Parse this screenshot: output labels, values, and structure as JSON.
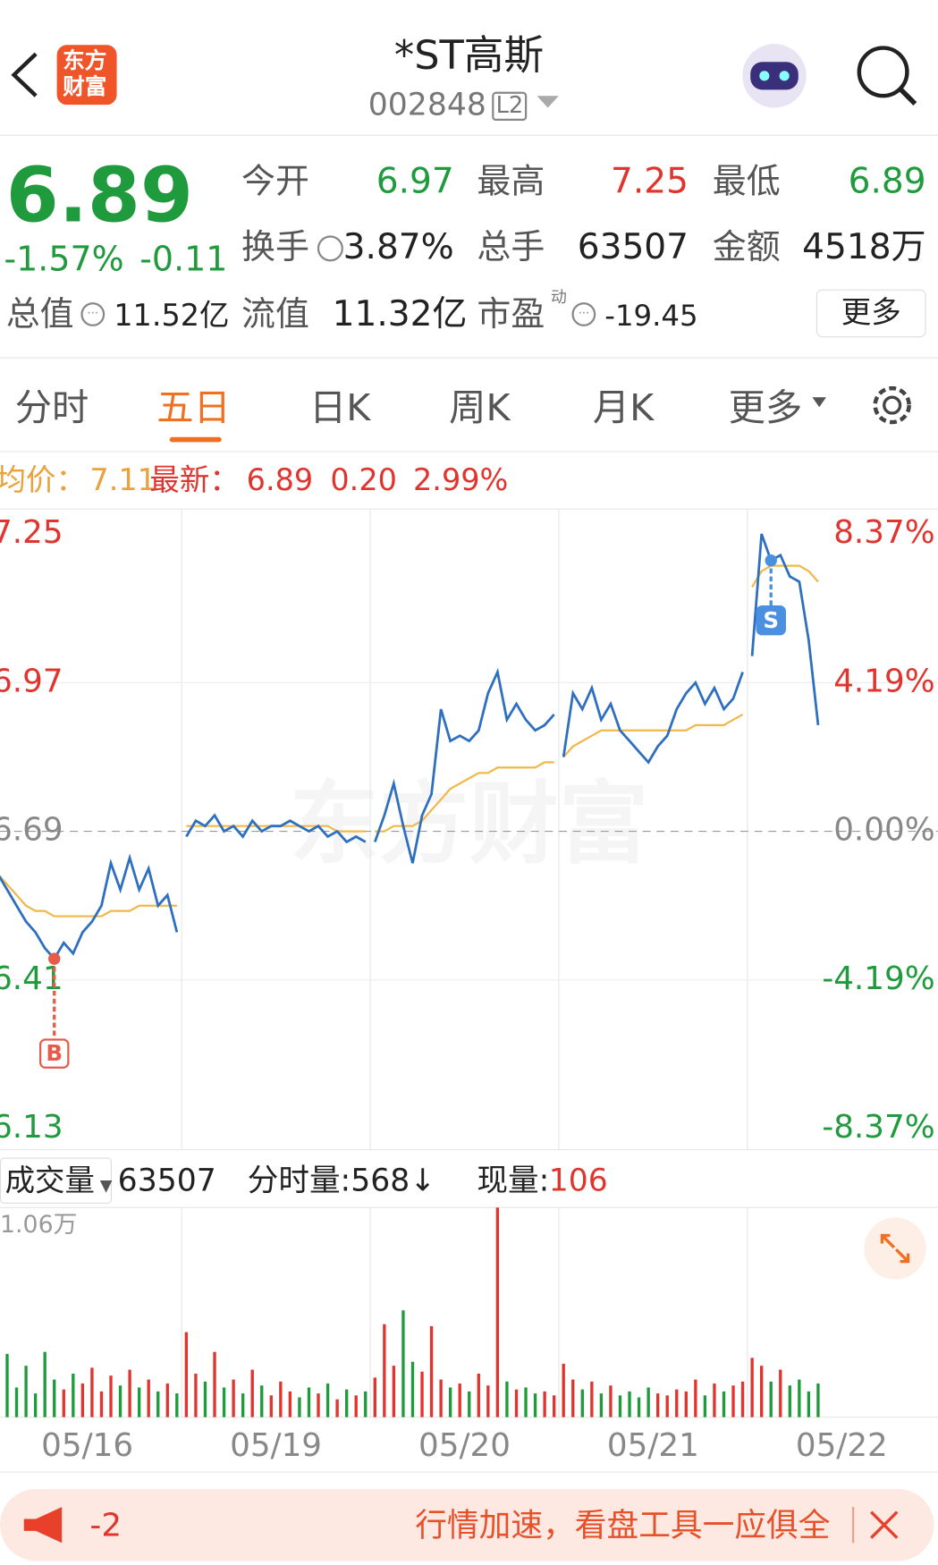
{
  "header": {
    "title": "*ST高斯",
    "code": "002848",
    "badge": "L2",
    "logo": [
      "东方",
      "财富"
    ]
  },
  "quote": {
    "price": "6.89",
    "change_pct": "-1.57%",
    "change": "-0.11",
    "stats": [
      {
        "label": "今开",
        "value": "6.97"
      },
      {
        "label": "最高",
        "value": "7.25"
      },
      {
        "label": "最低",
        "value": "6.89"
      },
      {
        "label": "换手",
        "value": "3.87%"
      },
      {
        "label": "总手",
        "value": "63507"
      },
      {
        "label": "金额",
        "value": "4518万"
      }
    ],
    "total_value": {
      "label": "总值",
      "value": "11.52亿"
    },
    "float_value": {
      "label": "流值",
      "value": "11.32亿"
    },
    "pe": {
      "label": "市盈",
      "sup": "动",
      "value": "-19.45"
    },
    "more": "更多"
  },
  "tabs": [
    "分时",
    "五日",
    "日K",
    "周K",
    "月K",
    "更多"
  ],
  "info": {
    "avg_label": "均价：",
    "avg": "7.11",
    "last_label": "最新：",
    "last": "6.89",
    "diff": "0.20",
    "pct": "2.99%"
  },
  "watermark": "东方财富",
  "price_chart": {
    "ylim": [
      6.13,
      7.25
    ],
    "yticks": [
      7.25,
      6.97,
      6.69,
      6.41,
      6.13
    ],
    "right_labels": [
      "8.37%",
      "4.19%",
      "0.00%",
      "-4.19%",
      "-8.37%"
    ],
    "markers": [
      "B",
      "S"
    ],
    "days": [
      {
        "date": "05/16",
        "price": [
          6.61,
          6.58,
          6.55,
          6.52,
          6.5,
          6.47,
          6.45,
          6.48,
          6.46,
          6.5,
          6.52,
          6.55,
          6.63,
          6.58,
          6.64,
          6.58,
          6.62,
          6.55,
          6.57,
          6.5
        ],
        "avg": [
          6.61,
          6.59,
          6.57,
          6.55,
          6.54,
          6.54,
          6.53,
          6.53,
          6.53,
          6.53,
          6.53,
          6.53,
          6.54,
          6.54,
          6.54,
          6.55,
          6.55,
          6.55,
          6.55,
          6.55
        ],
        "volume": [
          1800,
          3200,
          1500,
          2600,
          1200,
          3300,
          1900,
          1400,
          2200,
          1700,
          2500,
          1300,
          2100,
          1600,
          2400,
          1500,
          1900,
          1300,
          1700,
          1200
        ]
      },
      {
        "date": "05/19",
        "price": [
          6.68,
          6.71,
          6.7,
          6.72,
          6.69,
          6.7,
          6.68,
          6.71,
          6.69,
          6.7,
          6.7,
          6.71,
          6.7,
          6.69,
          6.7,
          6.68,
          6.69,
          6.67,
          6.68,
          6.67
        ],
        "avg": [
          6.7,
          6.7,
          6.7,
          6.7,
          6.7,
          6.7,
          6.7,
          6.7,
          6.7,
          6.7,
          6.7,
          6.7,
          6.7,
          6.7,
          6.7,
          6.7,
          6.69,
          6.69,
          6.69,
          6.69
        ],
        "volume": [
          4300,
          2200,
          1800,
          3300,
          1500,
          1900,
          1200,
          2400,
          1600,
          1100,
          1800,
          1300,
          1000,
          1500,
          1200,
          1700,
          900,
          1400,
          1100,
          1300
        ]
      },
      {
        "date": "05/20",
        "price": [
          6.67,
          6.72,
          6.78,
          6.7,
          6.63,
          6.72,
          6.76,
          6.92,
          6.86,
          6.87,
          6.86,
          6.88,
          6.95,
          6.99,
          6.9,
          6.93,
          6.9,
          6.88,
          6.89,
          6.91
        ],
        "avg": [
          6.69,
          6.69,
          6.7,
          6.7,
          6.7,
          6.71,
          6.73,
          6.75,
          6.77,
          6.78,
          6.79,
          6.8,
          6.8,
          6.81,
          6.81,
          6.81,
          6.81,
          6.81,
          6.82,
          6.82
        ],
        "volume": [
          2000,
          4700,
          2600,
          5400,
          2800,
          2300,
          4600,
          1900,
          1500,
          1700,
          1300,
          2200,
          1600,
          10600,
          1800,
          1400,
          1500,
          1200,
          1300,
          1100
        ]
      },
      {
        "date": "05/21",
        "price": [
          6.83,
          6.95,
          6.92,
          6.96,
          6.9,
          6.93,
          6.88,
          6.86,
          6.84,
          6.82,
          6.85,
          6.87,
          6.92,
          6.95,
          6.97,
          6.93,
          6.96,
          6.92,
          6.94,
          6.99
        ],
        "avg": [
          6.83,
          6.85,
          6.86,
          6.87,
          6.88,
          6.88,
          6.88,
          6.88,
          6.88,
          6.88,
          6.88,
          6.88,
          6.88,
          6.88,
          6.89,
          6.89,
          6.89,
          6.89,
          6.9,
          6.91
        ],
        "volume": [
          2700,
          1900,
          1400,
          1800,
          1200,
          1600,
          1100,
          1300,
          1000,
          1500,
          1200,
          1100,
          1400,
          1300,
          1900,
          1100,
          1700,
          1300,
          1600,
          1800
        ]
      },
      {
        "date": "05/22",
        "price": [
          7.02,
          7.25,
          7.2,
          7.21,
          7.17,
          7.16,
          7.05,
          6.89
        ],
        "avg": [
          7.15,
          7.18,
          7.19,
          7.19,
          7.19,
          7.19,
          7.18,
          7.16
        ],
        "volume": [
          3000,
          2600,
          1800,
          2400,
          1600,
          1900,
          1300,
          1700
        ]
      }
    ]
  },
  "volume_header": {
    "label": "成交量",
    "total": "63507",
    "tick": "分时量:568↓",
    "now_label": "现量:",
    "now": "106"
  },
  "volume_max": {
    "value": 10600,
    "label": "1.06万"
  },
  "banner": {
    "tag": "-2",
    "text": "行情加速，看盘工具一应俱全"
  }
}
